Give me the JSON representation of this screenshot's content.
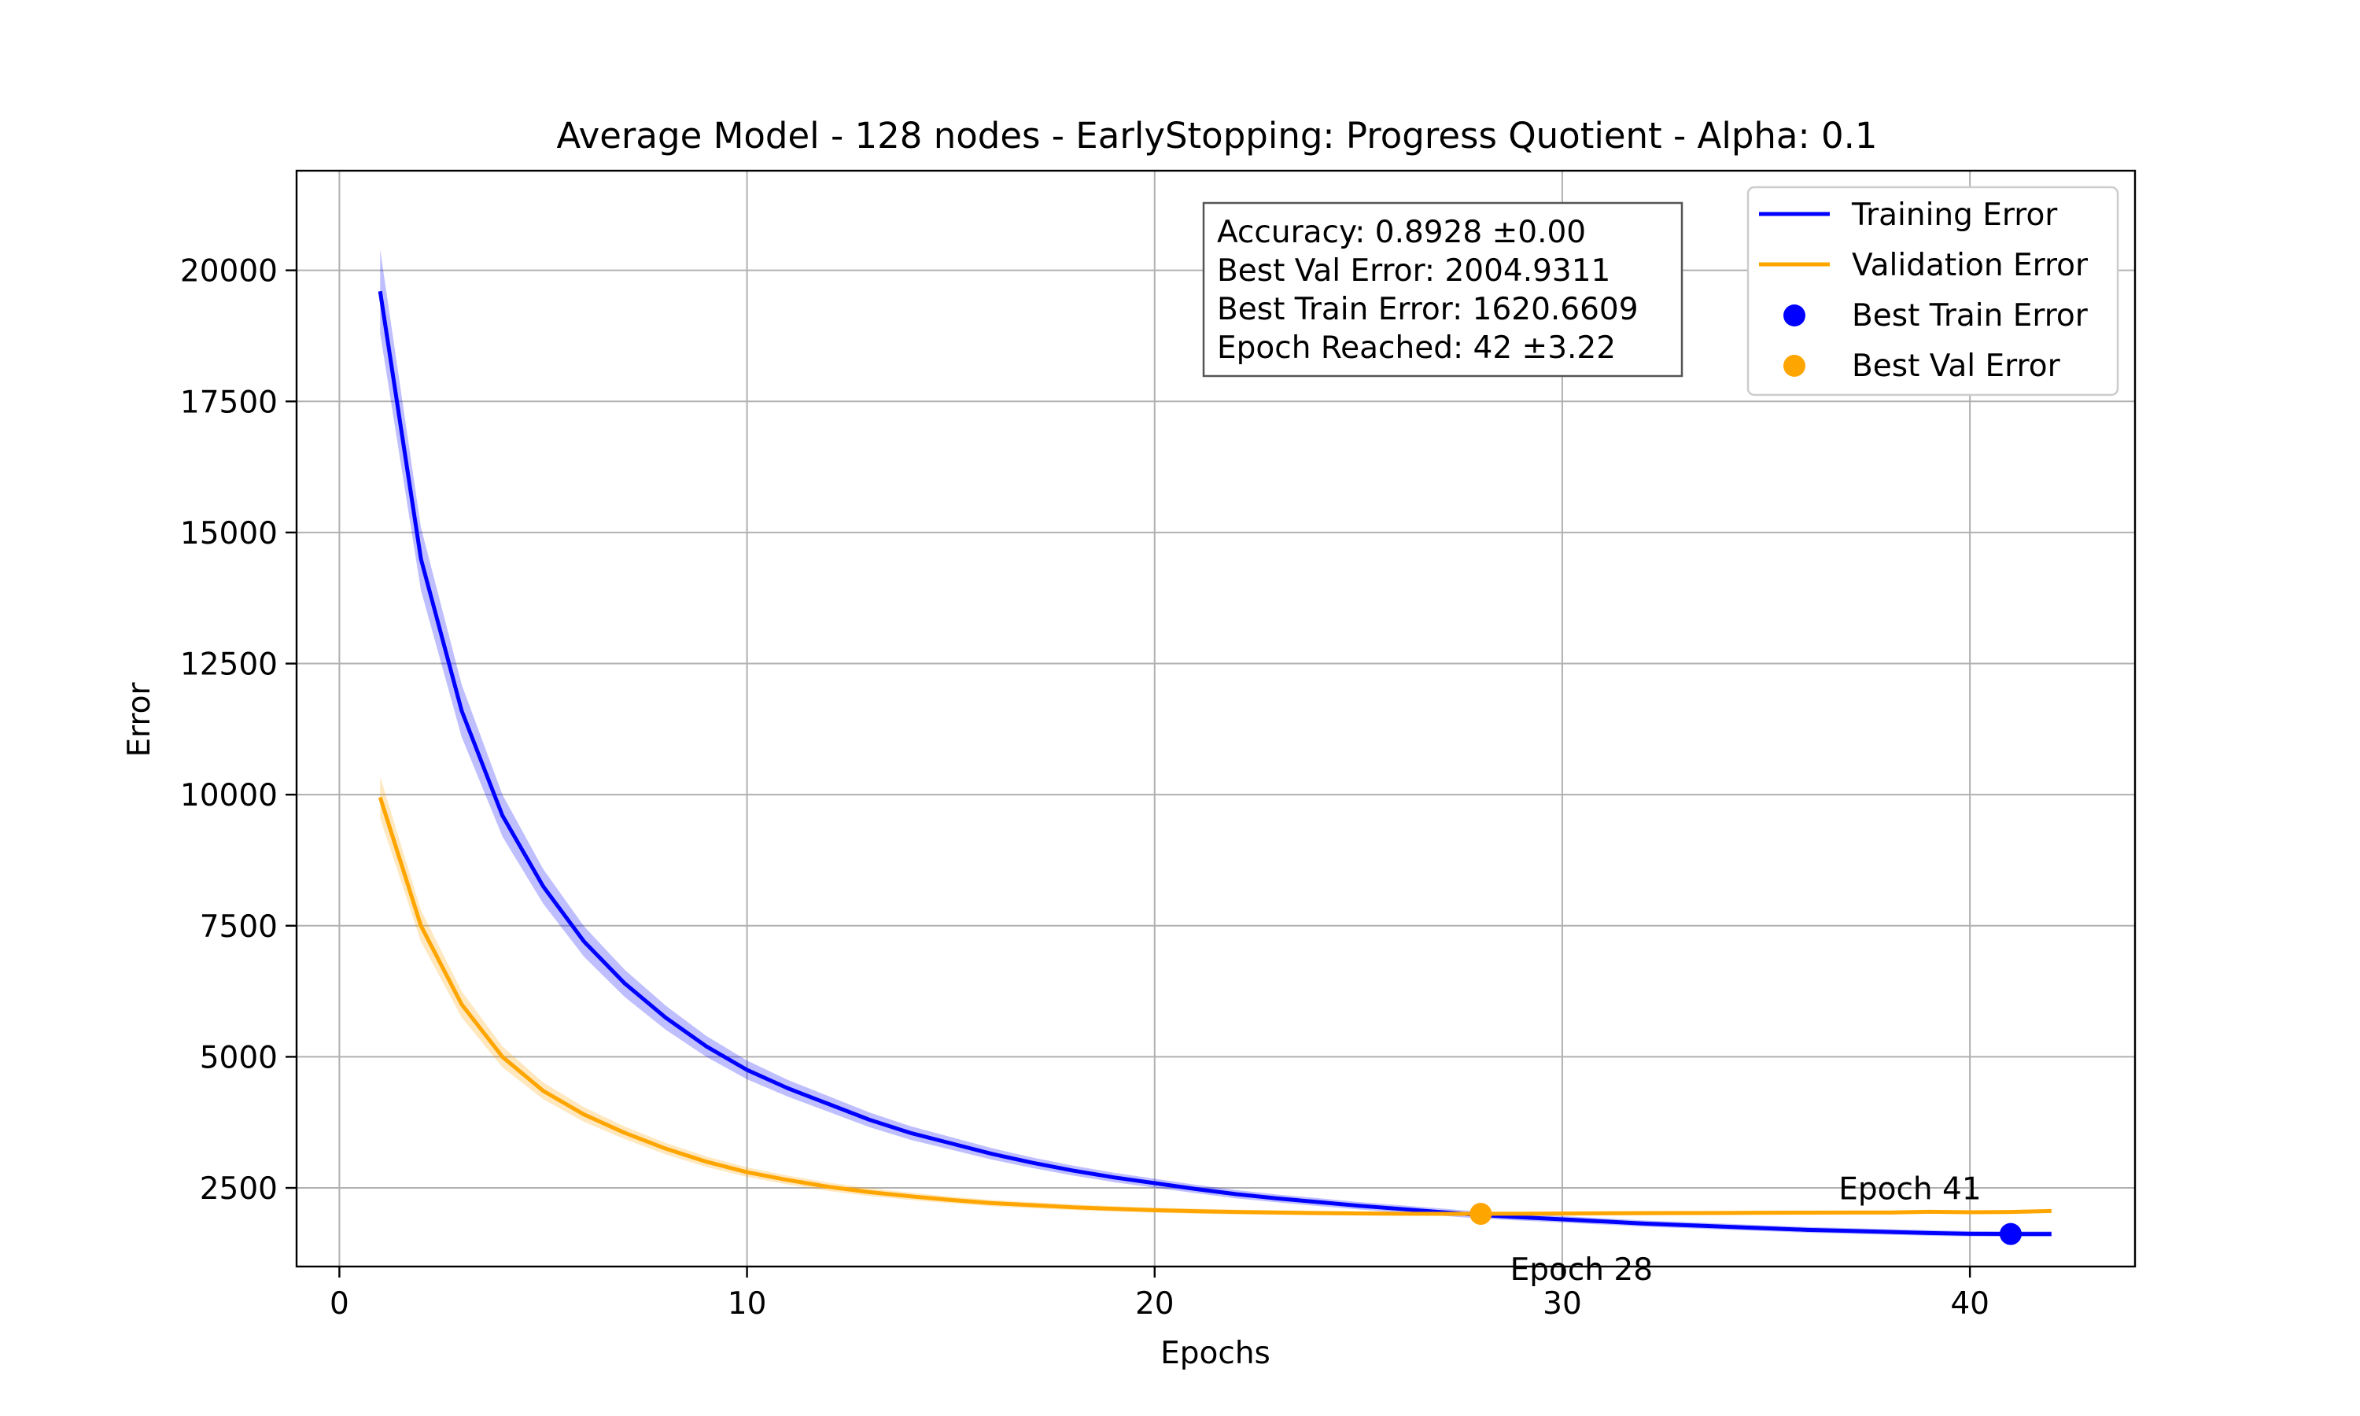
{
  "chart_data": {
    "type": "line",
    "title": "Average Model - 128 nodes - EarlyStopping: Progress Quotient - Alpha: 0.1",
    "xlabel": "Epochs",
    "ylabel": "Error",
    "xlim": [
      -1.05,
      44.05
    ],
    "ylim": [
      1000,
      21900
    ],
    "xticks": [
      0,
      10,
      20,
      30,
      40
    ],
    "yticks": [
      2500,
      5000,
      7500,
      10000,
      12500,
      15000,
      17500,
      20000
    ],
    "grid": true,
    "legend_position": "top-right",
    "series": [
      {
        "name": "Training Error",
        "color": "#0000ff",
        "band_color": "#0000ff",
        "x": [
          1,
          2,
          3,
          4,
          5,
          6,
          7,
          8,
          9,
          10,
          11,
          12,
          13,
          14,
          15,
          16,
          17,
          18,
          19,
          20,
          21,
          22,
          23,
          24,
          25,
          26,
          27,
          28,
          29,
          30,
          31,
          32,
          33,
          34,
          35,
          36,
          37,
          38,
          39,
          40,
          41,
          42
        ],
        "values": [
          19600,
          14500,
          11600,
          9600,
          8250,
          7200,
          6400,
          5750,
          5200,
          4750,
          4400,
          4100,
          3800,
          3550,
          3350,
          3150,
          2980,
          2830,
          2700,
          2590,
          2480,
          2380,
          2300,
          2230,
          2160,
          2100,
          2040,
          1980,
          1940,
          1900,
          1860,
          1820,
          1790,
          1760,
          1730,
          1700,
          1680,
          1660,
          1640,
          1625,
          1621,
          1621
        ],
        "band": [
          800,
          600,
          500,
          400,
          330,
          290,
          260,
          230,
          200,
          180,
          160,
          150,
          140,
          130,
          120,
          110,
          100,
          95,
          90,
          85,
          80,
          80,
          75,
          75,
          70,
          70,
          68,
          66,
          64,
          62,
          60,
          60,
          58,
          58,
          56,
          55,
          55,
          54,
          54,
          52,
          52,
          52
        ]
      },
      {
        "name": "Validation Error",
        "color": "#ffa500",
        "band_color": "#ffa500",
        "x": [
          1,
          2,
          3,
          4,
          5,
          6,
          7,
          8,
          9,
          10,
          11,
          12,
          13,
          14,
          15,
          16,
          17,
          18,
          19,
          20,
          21,
          22,
          23,
          24,
          25,
          26,
          27,
          28,
          29,
          30,
          31,
          32,
          33,
          34,
          35,
          36,
          37,
          38,
          39,
          40,
          41,
          42
        ],
        "values": [
          9950,
          7500,
          6000,
          5000,
          4350,
          3900,
          3550,
          3250,
          3000,
          2800,
          2650,
          2520,
          2420,
          2340,
          2270,
          2210,
          2170,
          2130,
          2100,
          2075,
          2055,
          2040,
          2030,
          2020,
          2013,
          2008,
          2006,
          2005,
          2008,
          2010,
          2015,
          2018,
          2020,
          2022,
          2025,
          2028,
          2030,
          2030,
          2045,
          2035,
          2040,
          2060
        ],
        "band": [
          400,
          300,
          250,
          200,
          160,
          140,
          120,
          110,
          100,
          90,
          85,
          80,
          75,
          70,
          65,
          60,
          58,
          55,
          52,
          50,
          48,
          46,
          44,
          42,
          40,
          40,
          38,
          38,
          38,
          38,
          38,
          38,
          38,
          38,
          38,
          38,
          38,
          38,
          38,
          38,
          38,
          38
        ]
      }
    ],
    "markers": [
      {
        "name": "Best Train Error",
        "x": 41,
        "y": 1620.6609,
        "color": "#0000ff",
        "label": "Epoch 41"
      },
      {
        "name": "Best Val Error",
        "x": 28,
        "y": 2004.9311,
        "color": "#ffa500",
        "label": "Epoch 28"
      }
    ],
    "stats_box": [
      "Accuracy: 0.8928 ±0.00",
      "Best Val Error: 2004.9311",
      "Best Train Error: 1620.6609",
      "Epoch Reached: 42 ±3.22"
    ],
    "legend": [
      {
        "label": "Training Error",
        "kind": "line",
        "color": "#0000ff"
      },
      {
        "label": "Validation Error",
        "kind": "line",
        "color": "#ffa500"
      },
      {
        "label": "Best Train Error",
        "kind": "dot",
        "color": "#0000ff"
      },
      {
        "label": "Best Val Error",
        "kind": "dot",
        "color": "#ffa500"
      }
    ]
  }
}
